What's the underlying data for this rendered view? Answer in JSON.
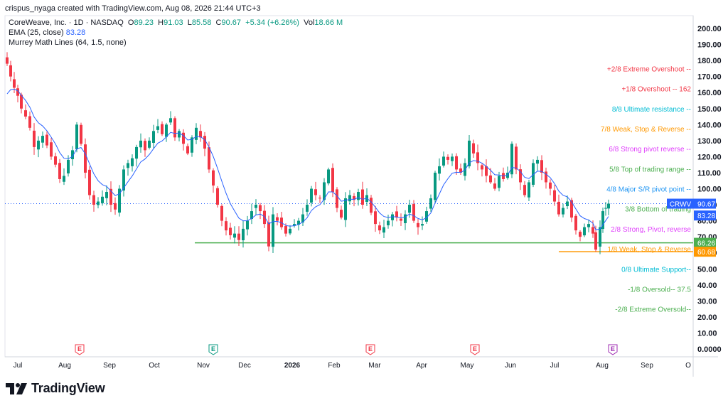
{
  "header": {
    "attribution": "crispus_nyaga created with TradingView.com, Aug 08, 2026 21:44 UTC+3"
  },
  "legend": {
    "symbol": "CoreWeave, Inc. · 1D · NASDAQ",
    "o_label": "O",
    "o_val": "89.23",
    "h_label": "H",
    "h_val": "91.03",
    "l_label": "L",
    "l_val": "85.58",
    "c_label": "C",
    "c_val": "90.67",
    "change": "+5.34 (+6.26%)",
    "vol_label": "Vol",
    "vol_val": "18.66 M",
    "ema_label": "EMA (25, close)",
    "ema_val": "83.28",
    "murrey_label": "Murrey Math Lines (64, 1.5, none)"
  },
  "brand": {
    "name": "TradingView"
  },
  "chart_data": {
    "type": "candlestick",
    "ylim": [
      0,
      205
    ],
    "yticks": [
      "200.00",
      "190.00",
      "180.00",
      "170.00",
      "160.00",
      "150.00",
      "140.00",
      "130.00",
      "120.00",
      "110.00",
      "100.00",
      "90.00",
      "80.00",
      "70.00",
      "60.00",
      "50.00",
      "40.00",
      "30.00",
      "20.00",
      "10.00",
      "0.0000"
    ],
    "ytick_values": [
      200,
      190,
      180,
      170,
      160,
      150,
      140,
      130,
      120,
      110,
      100,
      90,
      80,
      70,
      60,
      50,
      40,
      30,
      20,
      10,
      0
    ],
    "xticks": [
      "Jul",
      "Aug",
      "Sep",
      "Oct",
      "Nov",
      "Dec",
      "2026",
      "Feb",
      "Mar",
      "Apr",
      "May",
      "Jun",
      "Jul",
      "Aug",
      "Sep",
      "O"
    ],
    "xtick_positions": [
      25,
      91,
      154,
      217,
      286,
      344,
      411,
      470,
      527,
      593,
      657,
      718,
      780,
      847,
      910,
      968
    ],
    "earnings_markers": [
      {
        "label": "E",
        "x": 112,
        "color": "#f23645"
      },
      {
        "label": "E",
        "x": 300,
        "color": "#089981"
      },
      {
        "label": "E",
        "x": 521,
        "color": "#f23645"
      },
      {
        "label": "E",
        "x": 668,
        "color": "#f23645"
      },
      {
        "label": "E",
        "x": 862,
        "color": "#9c27b0"
      }
    ],
    "murrey_levels": [
      {
        "label": "+2/8 Extreme Overshoot --",
        "value": 175,
        "color": "#f23645"
      },
      {
        "label": "+1/8 Overshoot --  162",
        "value": 162.5,
        "color": "#f23645"
      },
      {
        "label": "8/8 Ultimate resistance --",
        "value": 150,
        "color": "#00bcd4"
      },
      {
        "label": "7/8 Weak, Stop & Reverse --",
        "value": 137.5,
        "color": "#ff9800"
      },
      {
        "label": "6/8 Strong pivot reverse --",
        "value": 125,
        "color": "#e040fb"
      },
      {
        "label": "5/8 Top of trading range --",
        "value": 112.5,
        "color": "#4caf50"
      },
      {
        "label": "4/8 Major S/R pivot point --",
        "value": 100,
        "color": "#2196f3"
      },
      {
        "label": "3/8 Bottom of trading",
        "value": 87.5,
        "color": "#4caf50"
      },
      {
        "label": "2/8 Strong, Pivot, reverse",
        "value": 75,
        "color": "#e040fb"
      },
      {
        "label": "1/8 Weak, Stop & Reverse",
        "value": 62.5,
        "color": "#ff9800"
      },
      {
        "label": "0/8 Ultimate Support--",
        "value": 50,
        "color": "#00bcd4"
      },
      {
        "label": "-1/8 Oversold--  37.5",
        "value": 37.5,
        "color": "#4caf50"
      },
      {
        "label": "-2/8 Extreme Oversold--",
        "value": 25,
        "color": "#4caf50"
      }
    ],
    "horizontal_lines": [
      {
        "value": 66.26,
        "color": "#4caf50",
        "label": "66.26"
      },
      {
        "value": 60.68,
        "color": "#ff9800",
        "label": "60.68"
      }
    ],
    "price_tags": [
      {
        "label": "CRWV",
        "value": "90.67",
        "y_value": 90.67,
        "color": "#2962ff"
      },
      {
        "label": "",
        "value": "83.28",
        "y_value": 83.28,
        "color": "#2962ff"
      }
    ],
    "close_series": [
      {
        "x": 10,
        "c": 178
      },
      {
        "x": 15,
        "c": 170
      },
      {
        "x": 20,
        "c": 163
      },
      {
        "x": 25,
        "c": 158
      },
      {
        "x": 30,
        "c": 150
      },
      {
        "x": 36,
        "c": 145
      },
      {
        "x": 42,
        "c": 138
      },
      {
        "x": 48,
        "c": 126
      },
      {
        "x": 54,
        "c": 130
      },
      {
        "x": 60,
        "c": 133
      },
      {
        "x": 66,
        "c": 127
      },
      {
        "x": 72,
        "c": 120
      },
      {
        "x": 78,
        "c": 115
      },
      {
        "x": 84,
        "c": 106
      },
      {
        "x": 90,
        "c": 108
      },
      {
        "x": 96,
        "c": 118
      },
      {
        "x": 102,
        "c": 124
      },
      {
        "x": 108,
        "c": 140
      },
      {
        "x": 114,
        "c": 128
      },
      {
        "x": 120,
        "c": 110
      },
      {
        "x": 126,
        "c": 96
      },
      {
        "x": 132,
        "c": 90
      },
      {
        "x": 138,
        "c": 92
      },
      {
        "x": 144,
        "c": 95
      },
      {
        "x": 150,
        "c": 98
      },
      {
        "x": 156,
        "c": 90
      },
      {
        "x": 162,
        "c": 87
      },
      {
        "x": 168,
        "c": 100
      },
      {
        "x": 174,
        "c": 112
      },
      {
        "x": 180,
        "c": 116
      },
      {
        "x": 186,
        "c": 119
      },
      {
        "x": 192,
        "c": 126
      },
      {
        "x": 198,
        "c": 130
      },
      {
        "x": 204,
        "c": 124
      },
      {
        "x": 210,
        "c": 130
      },
      {
        "x": 216,
        "c": 136
      },
      {
        "x": 222,
        "c": 139
      },
      {
        "x": 228,
        "c": 134
      },
      {
        "x": 234,
        "c": 140
      },
      {
        "x": 240,
        "c": 144
      },
      {
        "x": 246,
        "c": 132
      },
      {
        "x": 252,
        "c": 136
      },
      {
        "x": 258,
        "c": 128
      },
      {
        "x": 264,
        "c": 122
      },
      {
        "x": 270,
        "c": 132
      },
      {
        "x": 276,
        "c": 138
      },
      {
        "x": 282,
        "c": 132
      },
      {
        "x": 288,
        "c": 125
      },
      {
        "x": 294,
        "c": 112
      },
      {
        "x": 300,
        "c": 102
      },
      {
        "x": 306,
        "c": 90
      },
      {
        "x": 312,
        "c": 80
      },
      {
        "x": 318,
        "c": 74
      },
      {
        "x": 324,
        "c": 71
      },
      {
        "x": 330,
        "c": 72
      },
      {
        "x": 336,
        "c": 68
      },
      {
        "x": 342,
        "c": 75
      },
      {
        "x": 348,
        "c": 80
      },
      {
        "x": 354,
        "c": 86
      },
      {
        "x": 360,
        "c": 90
      },
      {
        "x": 366,
        "c": 86
      },
      {
        "x": 372,
        "c": 78
      },
      {
        "x": 378,
        "c": 64
      },
      {
        "x": 384,
        "c": 84
      },
      {
        "x": 390,
        "c": 80
      },
      {
        "x": 396,
        "c": 76
      },
      {
        "x": 402,
        "c": 72
      },
      {
        "x": 408,
        "c": 75
      },
      {
        "x": 414,
        "c": 78
      },
      {
        "x": 420,
        "c": 80
      },
      {
        "x": 426,
        "c": 84
      },
      {
        "x": 432,
        "c": 90
      },
      {
        "x": 438,
        "c": 100
      },
      {
        "x": 444,
        "c": 96
      },
      {
        "x": 450,
        "c": 94
      },
      {
        "x": 456,
        "c": 104
      },
      {
        "x": 462,
        "c": 112
      },
      {
        "x": 468,
        "c": 98
      },
      {
        "x": 474,
        "c": 88
      },
      {
        "x": 480,
        "c": 82
      },
      {
        "x": 486,
        "c": 94
      },
      {
        "x": 492,
        "c": 96
      },
      {
        "x": 498,
        "c": 93
      },
      {
        "x": 504,
        "c": 98
      },
      {
        "x": 510,
        "c": 90
      },
      {
        "x": 516,
        "c": 96
      },
      {
        "x": 522,
        "c": 85
      },
      {
        "x": 528,
        "c": 78
      },
      {
        "x": 534,
        "c": 74
      },
      {
        "x": 540,
        "c": 76
      },
      {
        "x": 546,
        "c": 80
      },
      {
        "x": 552,
        "c": 84
      },
      {
        "x": 558,
        "c": 82
      },
      {
        "x": 564,
        "c": 80
      },
      {
        "x": 570,
        "c": 84
      },
      {
        "x": 576,
        "c": 90
      },
      {
        "x": 582,
        "c": 80
      },
      {
        "x": 588,
        "c": 76
      },
      {
        "x": 594,
        "c": 78
      },
      {
        "x": 600,
        "c": 86
      },
      {
        "x": 606,
        "c": 94
      },
      {
        "x": 612,
        "c": 110
      },
      {
        "x": 618,
        "c": 114
      },
      {
        "x": 624,
        "c": 120
      },
      {
        "x": 630,
        "c": 118
      },
      {
        "x": 636,
        "c": 120
      },
      {
        "x": 642,
        "c": 112
      },
      {
        "x": 648,
        "c": 110
      },
      {
        "x": 654,
        "c": 116
      },
      {
        "x": 660,
        "c": 130
      },
      {
        "x": 666,
        "c": 122
      },
      {
        "x": 672,
        "c": 116
      },
      {
        "x": 678,
        "c": 112
      },
      {
        "x": 684,
        "c": 108
      },
      {
        "x": 690,
        "c": 104
      },
      {
        "x": 696,
        "c": 100
      },
      {
        "x": 702,
        "c": 108
      },
      {
        "x": 708,
        "c": 106
      },
      {
        "x": 714,
        "c": 110
      },
      {
        "x": 720,
        "c": 128
      },
      {
        "x": 726,
        "c": 112
      },
      {
        "x": 732,
        "c": 104
      },
      {
        "x": 738,
        "c": 96
      },
      {
        "x": 744,
        "c": 104
      },
      {
        "x": 750,
        "c": 116
      },
      {
        "x": 756,
        "c": 118
      },
      {
        "x": 762,
        "c": 110
      },
      {
        "x": 768,
        "c": 104
      },
      {
        "x": 774,
        "c": 100
      },
      {
        "x": 780,
        "c": 92
      },
      {
        "x": 786,
        "c": 84
      },
      {
        "x": 792,
        "c": 88
      },
      {
        "x": 798,
        "c": 92
      },
      {
        "x": 804,
        "c": 82
      },
      {
        "x": 810,
        "c": 74
      },
      {
        "x": 816,
        "c": 70
      },
      {
        "x": 822,
        "c": 76
      },
      {
        "x": 828,
        "c": 78
      },
      {
        "x": 834,
        "c": 72
      },
      {
        "x": 838,
        "c": 62
      },
      {
        "x": 844,
        "c": 76
      },
      {
        "x": 848,
        "c": 86
      },
      {
        "x": 852,
        "c": 88
      },
      {
        "x": 856,
        "c": 90.67
      }
    ]
  }
}
